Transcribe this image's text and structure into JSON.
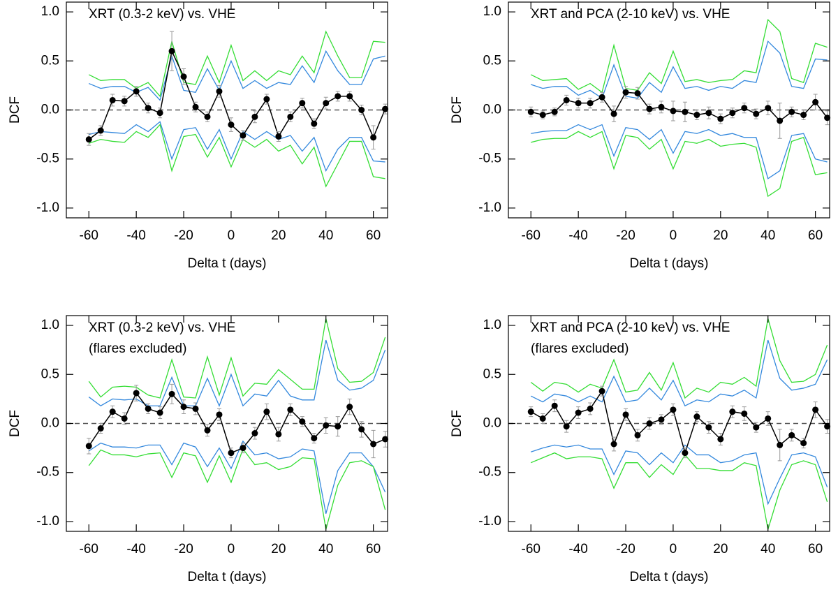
{
  "chart_data": [
    {
      "type": "line",
      "annotations": [
        "XRT (0.3-2 keV) vs. VHE"
      ],
      "xlabel": "Delta t (days)",
      "ylabel": "DCF",
      "xlim": [
        -69.5,
        66
      ],
      "ylim": [
        -1.1,
        1.1
      ],
      "xticks": [
        -60,
        -40,
        -20,
        0,
        20,
        40,
        60
      ],
      "yticks": [
        {
          "value": 1.0,
          "label": "1.0"
        },
        0.5,
        {
          "value": 0.0,
          "label": "0.0"
        },
        -0.5,
        {
          "value": -1.0,
          "label": "-1.0"
        }
      ],
      "reference_line": 0,
      "x": [
        -60,
        -55,
        -50,
        -45,
        -40,
        -35,
        -30,
        -25,
        -20,
        -15,
        -10,
        -5,
        0,
        5,
        10,
        15,
        20,
        25,
        30,
        35,
        40,
        45,
        50,
        55,
        60,
        65
      ],
      "series": [
        {
          "color": "#33dd33",
          "values": [
            0.36,
            0.3,
            0.31,
            0.31,
            0.22,
            0.28,
            0.14,
            0.7,
            0.28,
            0.26,
            0.55,
            0.28,
            0.66,
            0.3,
            0.4,
            0.3,
            0.4,
            0.36,
            0.55,
            0.38,
            0.8,
            0.55,
            0.33,
            0.33,
            0.7,
            0.69
          ]
        },
        {
          "color": "#3388dd",
          "values": [
            0.27,
            0.22,
            0.24,
            0.24,
            0.18,
            0.23,
            0.1,
            0.55,
            0.2,
            0.18,
            0.42,
            0.2,
            0.5,
            0.22,
            0.3,
            0.22,
            0.28,
            0.26,
            0.45,
            0.28,
            0.6,
            0.4,
            0.26,
            0.26,
            0.52,
            0.55
          ]
        },
        {
          "color": "#3388dd",
          "values": [
            -0.25,
            -0.22,
            -0.23,
            -0.24,
            -0.15,
            -0.22,
            -0.12,
            -0.5,
            -0.2,
            -0.18,
            -0.4,
            -0.2,
            -0.5,
            -0.22,
            -0.3,
            -0.22,
            -0.3,
            -0.26,
            -0.42,
            -0.28,
            -0.62,
            -0.4,
            -0.28,
            -0.28,
            -0.52,
            -0.53
          ]
        },
        {
          "color": "#33dd33",
          "values": [
            -0.34,
            -0.3,
            -0.32,
            -0.33,
            -0.22,
            -0.28,
            -0.15,
            -0.62,
            -0.27,
            -0.25,
            -0.48,
            -0.28,
            -0.58,
            -0.3,
            -0.38,
            -0.3,
            -0.42,
            -0.36,
            -0.55,
            -0.38,
            -0.78,
            -0.55,
            -0.32,
            -0.32,
            -0.68,
            -0.7
          ]
        },
        {
          "color": "#000000",
          "markers": true,
          "error_color": "#999999",
          "values": [
            -0.3,
            -0.21,
            0.1,
            0.09,
            0.19,
            0.02,
            -0.03,
            0.6,
            0.34,
            0.03,
            -0.07,
            0.19,
            -0.15,
            -0.26,
            -0.07,
            0.11,
            -0.27,
            -0.07,
            0.07,
            -0.14,
            0.07,
            0.14,
            0.14,
            0.0,
            -0.28,
            0.01
          ],
          "errors": [
            0.06,
            0.05,
            0.06,
            0.05,
            0.05,
            0.05,
            0.05,
            0.2,
            0.08,
            0.05,
            0.05,
            0.06,
            0.07,
            0.05,
            0.06,
            0.05,
            0.05,
            0.05,
            0.05,
            0.05,
            0.06,
            0.05,
            0.05,
            0.05,
            0.12,
            0.05
          ]
        }
      ]
    },
    {
      "type": "line",
      "annotations": [
        "XRT and PCA (2-10 keV) vs. VHE"
      ],
      "xlabel": "Delta t (days)",
      "ylabel": "DCF",
      "xlim": [
        -69.5,
        66
      ],
      "ylim": [
        -1.1,
        1.1
      ],
      "xticks": [
        -60,
        -40,
        -20,
        0,
        20,
        40,
        60
      ],
      "yticks": [
        {
          "value": 1.0,
          "label": "1.0"
        },
        0.5,
        {
          "value": 0.0,
          "label": "0.0"
        },
        -0.5,
        {
          "value": -1.0,
          "label": "-1.0"
        }
      ],
      "reference_line": 0,
      "x": [
        -60,
        -55,
        -50,
        -45,
        -40,
        -35,
        -30,
        -25,
        -20,
        -15,
        -10,
        -5,
        0,
        5,
        10,
        15,
        20,
        25,
        30,
        35,
        40,
        45,
        50,
        55,
        60,
        65
      ],
      "series": [
        {
          "color": "#33dd33",
          "values": [
            0.36,
            0.3,
            0.31,
            0.32,
            0.21,
            0.27,
            0.18,
            0.66,
            0.22,
            0.2,
            0.38,
            0.27,
            0.6,
            0.29,
            0.31,
            0.28,
            0.3,
            0.31,
            0.4,
            0.38,
            0.92,
            0.8,
            0.32,
            0.28,
            0.68,
            0.64
          ]
        },
        {
          "color": "#3388dd",
          "values": [
            0.26,
            0.22,
            0.24,
            0.24,
            0.15,
            0.2,
            0.12,
            0.46,
            0.14,
            0.12,
            0.28,
            0.18,
            0.44,
            0.22,
            0.24,
            0.2,
            0.24,
            0.22,
            0.3,
            0.28,
            0.7,
            0.58,
            0.24,
            0.22,
            0.52,
            0.51
          ]
        },
        {
          "color": "#3388dd",
          "values": [
            -0.24,
            -0.22,
            -0.21,
            -0.21,
            -0.15,
            -0.2,
            -0.15,
            -0.47,
            -0.18,
            -0.2,
            -0.3,
            -0.2,
            -0.44,
            -0.22,
            -0.24,
            -0.2,
            -0.26,
            -0.24,
            -0.28,
            -0.28,
            -0.7,
            -0.62,
            -0.26,
            -0.24,
            -0.5,
            -0.53
          ]
        },
        {
          "color": "#33dd33",
          "values": [
            -0.33,
            -0.3,
            -0.29,
            -0.29,
            -0.22,
            -0.28,
            -0.22,
            -0.6,
            -0.26,
            -0.28,
            -0.4,
            -0.3,
            -0.6,
            -0.32,
            -0.34,
            -0.3,
            -0.37,
            -0.35,
            -0.34,
            -0.38,
            -0.88,
            -0.8,
            -0.32,
            -0.28,
            -0.66,
            -0.64
          ]
        },
        {
          "color": "#000000",
          "markers": true,
          "error_color": "#999999",
          "values": [
            -0.02,
            -0.05,
            -0.02,
            0.1,
            0.07,
            0.07,
            0.13,
            -0.04,
            0.18,
            0.17,
            0.01,
            0.03,
            -0.01,
            -0.02,
            -0.05,
            -0.03,
            -0.09,
            -0.03,
            0.02,
            -0.04,
            0.02,
            -0.11,
            -0.02,
            -0.05,
            0.08,
            -0.08
          ],
          "errors": [
            0.05,
            0.04,
            0.04,
            0.05,
            0.05,
            0.05,
            0.05,
            0.08,
            0.06,
            0.06,
            0.05,
            0.06,
            0.1,
            0.1,
            0.05,
            0.06,
            0.05,
            0.05,
            0.05,
            0.05,
            0.07,
            0.18,
            0.05,
            0.05,
            0.08,
            0.07
          ]
        }
      ]
    },
    {
      "type": "line",
      "annotations": [
        "XRT (0.3-2 keV) vs. VHE",
        "(flares excluded)"
      ],
      "xlabel": "Delta t (days)",
      "ylabel": "DCF",
      "xlim": [
        -69.5,
        66
      ],
      "ylim": [
        -1.1,
        1.1
      ],
      "xticks": [
        -60,
        -40,
        -20,
        0,
        20,
        40,
        60
      ],
      "yticks": [
        {
          "value": 1.0,
          "label": "1.0"
        },
        0.5,
        {
          "value": 0.0,
          "label": "0.0"
        },
        -0.5,
        {
          "value": -1.0,
          "label": "-1.0"
        }
      ],
      "reference_line": 0,
      "x": [
        -60,
        -55,
        -50,
        -45,
        -40,
        -35,
        -30,
        -25,
        -20,
        -15,
        -10,
        -5,
        0,
        5,
        10,
        15,
        20,
        25,
        30,
        35,
        40,
        45,
        50,
        55,
        60,
        65
      ],
      "series": [
        {
          "color": "#33dd33",
          "values": [
            0.43,
            0.27,
            0.37,
            0.38,
            0.37,
            0.29,
            0.26,
            0.65,
            0.27,
            0.26,
            0.68,
            0.29,
            0.67,
            0.28,
            0.41,
            0.4,
            0.55,
            0.45,
            0.35,
            0.35,
            1.07,
            0.56,
            0.42,
            0.43,
            0.52,
            0.88
          ]
        },
        {
          "color": "#3388dd",
          "values": [
            0.27,
            0.18,
            0.25,
            0.24,
            0.25,
            0.18,
            0.18,
            0.47,
            0.18,
            0.18,
            0.46,
            0.18,
            0.5,
            0.18,
            0.3,
            0.28,
            0.44,
            0.28,
            0.24,
            0.24,
            0.85,
            0.44,
            0.34,
            0.36,
            0.44,
            0.75
          ]
        },
        {
          "color": "#3388dd",
          "values": [
            -0.28,
            -0.2,
            -0.24,
            -0.24,
            -0.25,
            -0.22,
            -0.22,
            -0.42,
            -0.2,
            -0.24,
            -0.44,
            -0.25,
            -0.46,
            -0.18,
            -0.32,
            -0.3,
            -0.36,
            -0.34,
            -0.26,
            -0.28,
            -0.92,
            -0.48,
            -0.3,
            -0.3,
            -0.44,
            -0.7
          ]
        },
        {
          "color": "#33dd33",
          "values": [
            -0.43,
            -0.27,
            -0.32,
            -0.32,
            -0.34,
            -0.31,
            -0.3,
            -0.55,
            -0.3,
            -0.33,
            -0.6,
            -0.33,
            -0.6,
            -0.26,
            -0.42,
            -0.4,
            -0.47,
            -0.44,
            -0.35,
            -0.36,
            -1.08,
            -0.63,
            -0.4,
            -0.38,
            -0.44,
            -0.88
          ]
        },
        {
          "color": "#000000",
          "markers": true,
          "error_color": "#999999",
          "values": [
            -0.23,
            -0.05,
            0.12,
            0.05,
            0.31,
            0.15,
            0.11,
            0.3,
            0.17,
            0.15,
            -0.07,
            0.09,
            -0.3,
            -0.25,
            -0.1,
            0.12,
            -0.11,
            0.14,
            0.02,
            -0.15,
            -0.02,
            -0.03,
            0.17,
            -0.06,
            -0.21,
            -0.16
          ],
          "errors": [
            0.08,
            0.05,
            0.06,
            0.06,
            0.08,
            0.05,
            0.06,
            0.1,
            0.07,
            0.06,
            0.06,
            0.06,
            0.05,
            0.05,
            0.06,
            0.08,
            0.07,
            0.06,
            0.05,
            0.05,
            0.08,
            0.1,
            0.08,
            0.08,
            0.14,
            0.08
          ]
        }
      ]
    },
    {
      "type": "line",
      "annotations": [
        "XRT and PCA (2-10 keV) vs. VHE",
        "(flares excluded)"
      ],
      "xlabel": "Delta t (days)",
      "ylabel": "DCF",
      "xlim": [
        -69.5,
        66
      ],
      "ylim": [
        -1.1,
        1.1
      ],
      "xticks": [
        -60,
        -40,
        -20,
        0,
        20,
        40,
        60
      ],
      "yticks": [
        {
          "value": 1.0,
          "label": "1.0"
        },
        0.5,
        {
          "value": 0.0,
          "label": "0.0"
        },
        -0.5,
        {
          "value": -1.0,
          "label": "-1.0"
        }
      ],
      "reference_line": 0,
      "x": [
        -60,
        -55,
        -50,
        -45,
        -40,
        -35,
        -30,
        -25,
        -20,
        -15,
        -10,
        -5,
        0,
        5,
        10,
        15,
        20,
        25,
        30,
        35,
        40,
        45,
        50,
        55,
        60,
        65
      ],
      "series": [
        {
          "color": "#33dd33",
          "values": [
            0.42,
            0.33,
            0.42,
            0.4,
            0.32,
            0.4,
            0.36,
            0.65,
            0.32,
            0.34,
            0.52,
            0.34,
            0.62,
            0.26,
            0.36,
            0.32,
            0.42,
            0.4,
            0.47,
            0.38,
            1.07,
            0.64,
            0.42,
            0.43,
            0.5,
            0.8
          ]
        },
        {
          "color": "#3388dd",
          "values": [
            0.28,
            0.22,
            0.3,
            0.28,
            0.22,
            0.28,
            0.22,
            0.48,
            0.22,
            0.24,
            0.36,
            0.24,
            0.44,
            0.18,
            0.24,
            0.22,
            0.3,
            0.28,
            0.34,
            0.26,
            0.85,
            0.46,
            0.34,
            0.36,
            0.4,
            0.65
          ]
        },
        {
          "color": "#3388dd",
          "values": [
            -0.29,
            -0.25,
            -0.22,
            -0.24,
            -0.22,
            -0.26,
            -0.26,
            -0.52,
            -0.28,
            -0.3,
            -0.42,
            -0.3,
            -0.4,
            -0.22,
            -0.32,
            -0.32,
            -0.4,
            -0.38,
            -0.32,
            -0.3,
            -0.82,
            -0.56,
            -0.32,
            -0.3,
            -0.34,
            -0.65
          ]
        },
        {
          "color": "#33dd33",
          "values": [
            -0.4,
            -0.35,
            -0.3,
            -0.36,
            -0.34,
            -0.34,
            -0.36,
            -0.66,
            -0.4,
            -0.4,
            -0.55,
            -0.42,
            -0.52,
            -0.32,
            -0.46,
            -0.46,
            -0.48,
            -0.48,
            -0.4,
            -0.43,
            -1.08,
            -0.68,
            -0.42,
            -0.38,
            -0.42,
            -0.8
          ]
        },
        {
          "color": "#000000",
          "markers": true,
          "error_color": "#999999",
          "values": [
            0.12,
            0.05,
            0.18,
            -0.03,
            0.11,
            0.15,
            0.33,
            -0.21,
            0.09,
            -0.12,
            0.0,
            0.04,
            0.14,
            -0.3,
            0.07,
            -0.04,
            -0.16,
            0.12,
            0.1,
            -0.04,
            0.05,
            -0.22,
            -0.12,
            -0.2,
            0.14,
            -0.03
          ],
          "errors": [
            0.05,
            0.05,
            0.06,
            0.06,
            0.06,
            0.06,
            0.05,
            0.07,
            0.06,
            0.06,
            0.06,
            0.05,
            0.06,
            0.05,
            0.05,
            0.06,
            0.06,
            0.06,
            0.07,
            0.05,
            0.07,
            0.16,
            0.06,
            0.05,
            0.08,
            0.07
          ]
        }
      ]
    }
  ]
}
